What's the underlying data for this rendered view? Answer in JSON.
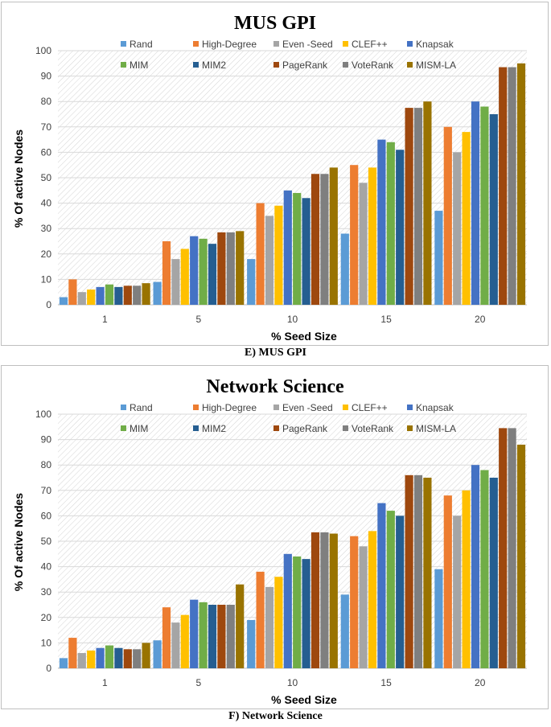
{
  "chart_data": [
    {
      "type": "bar",
      "title": "MUS GPI",
      "caption": "E) MUS GPI",
      "xlabel": "% Seed Size",
      "ylabel": "% Of active Nodes",
      "ylim": [
        0,
        100
      ],
      "yticks": [
        0,
        10,
        20,
        30,
        40,
        50,
        60,
        70,
        80,
        90,
        100
      ],
      "grid": true,
      "legend": "top",
      "categories": [
        "1",
        "5",
        "10",
        "15",
        "20"
      ],
      "series": [
        {
          "name": "Rand",
          "color": "#5b9bd5",
          "values": [
            3,
            9,
            18,
            28,
            37
          ]
        },
        {
          "name": "High-Degree",
          "color": "#ed7d31",
          "values": [
            10,
            25,
            40,
            55,
            70
          ]
        },
        {
          "name": "Even -Seed",
          "color": "#a5a5a5",
          "values": [
            5,
            18,
            35,
            48,
            60
          ]
        },
        {
          "name": "CLEF++",
          "color": "#ffc000",
          "values": [
            6,
            22,
            39,
            54,
            68
          ]
        },
        {
          "name": "Knapsak",
          "color": "#4472c4",
          "values": [
            7,
            27,
            45,
            65,
            80
          ]
        },
        {
          "name": "MIM",
          "color": "#70ad47",
          "values": [
            8,
            26,
            44,
            64,
            78
          ]
        },
        {
          "name": "MIM2",
          "color": "#255e91",
          "values": [
            7,
            24,
            42,
            61,
            75
          ]
        },
        {
          "name": "PageRank",
          "color": "#9e480e",
          "values": [
            7.5,
            28.5,
            51.5,
            77.5,
            93.5
          ]
        },
        {
          "name": "VoteRank",
          "color": "#7f7f7f",
          "values": [
            7.5,
            28.5,
            51.5,
            77.5,
            93.5
          ]
        },
        {
          "name": "MISM-LA",
          "color": "#997300",
          "values": [
            8.5,
            29,
            54,
            80,
            95
          ]
        }
      ]
    },
    {
      "type": "bar",
      "title": "Network Science",
      "caption": "F) Network Science",
      "xlabel": "% Seed Size",
      "ylabel": "% Of active Nodes",
      "ylim": [
        0,
        100
      ],
      "yticks": [
        0,
        10,
        20,
        30,
        40,
        50,
        60,
        70,
        80,
        90,
        100
      ],
      "grid": true,
      "legend": "top",
      "categories": [
        "1",
        "5",
        "10",
        "15",
        "20"
      ],
      "series": [
        {
          "name": "Rand",
          "color": "#5b9bd5",
          "values": [
            4,
            11,
            19,
            29,
            39
          ]
        },
        {
          "name": "High-Degree",
          "color": "#ed7d31",
          "values": [
            12,
            24,
            38,
            52,
            68
          ]
        },
        {
          "name": "Even -Seed",
          "color": "#a5a5a5",
          "values": [
            6,
            18,
            32,
            48,
            60
          ]
        },
        {
          "name": "CLEF++",
          "color": "#ffc000",
          "values": [
            7,
            21,
            36,
            54,
            70
          ]
        },
        {
          "name": "Knapsak",
          "color": "#4472c4",
          "values": [
            8,
            27,
            45,
            65,
            80
          ]
        },
        {
          "name": "MIM",
          "color": "#70ad47",
          "values": [
            9,
            26,
            44,
            62,
            78
          ]
        },
        {
          "name": "MIM2",
          "color": "#255e91",
          "values": [
            8,
            25,
            43,
            60,
            75
          ]
        },
        {
          "name": "PageRank",
          "color": "#9e480e",
          "values": [
            7.5,
            25,
            53.5,
            76,
            94.5
          ]
        },
        {
          "name": "VoteRank",
          "color": "#7f7f7f",
          "values": [
            7.5,
            25,
            53.5,
            76,
            94.5
          ]
        },
        {
          "name": "MISM-LA",
          "color": "#997300",
          "values": [
            10,
            33,
            53,
            75,
            88
          ]
        }
      ]
    }
  ]
}
